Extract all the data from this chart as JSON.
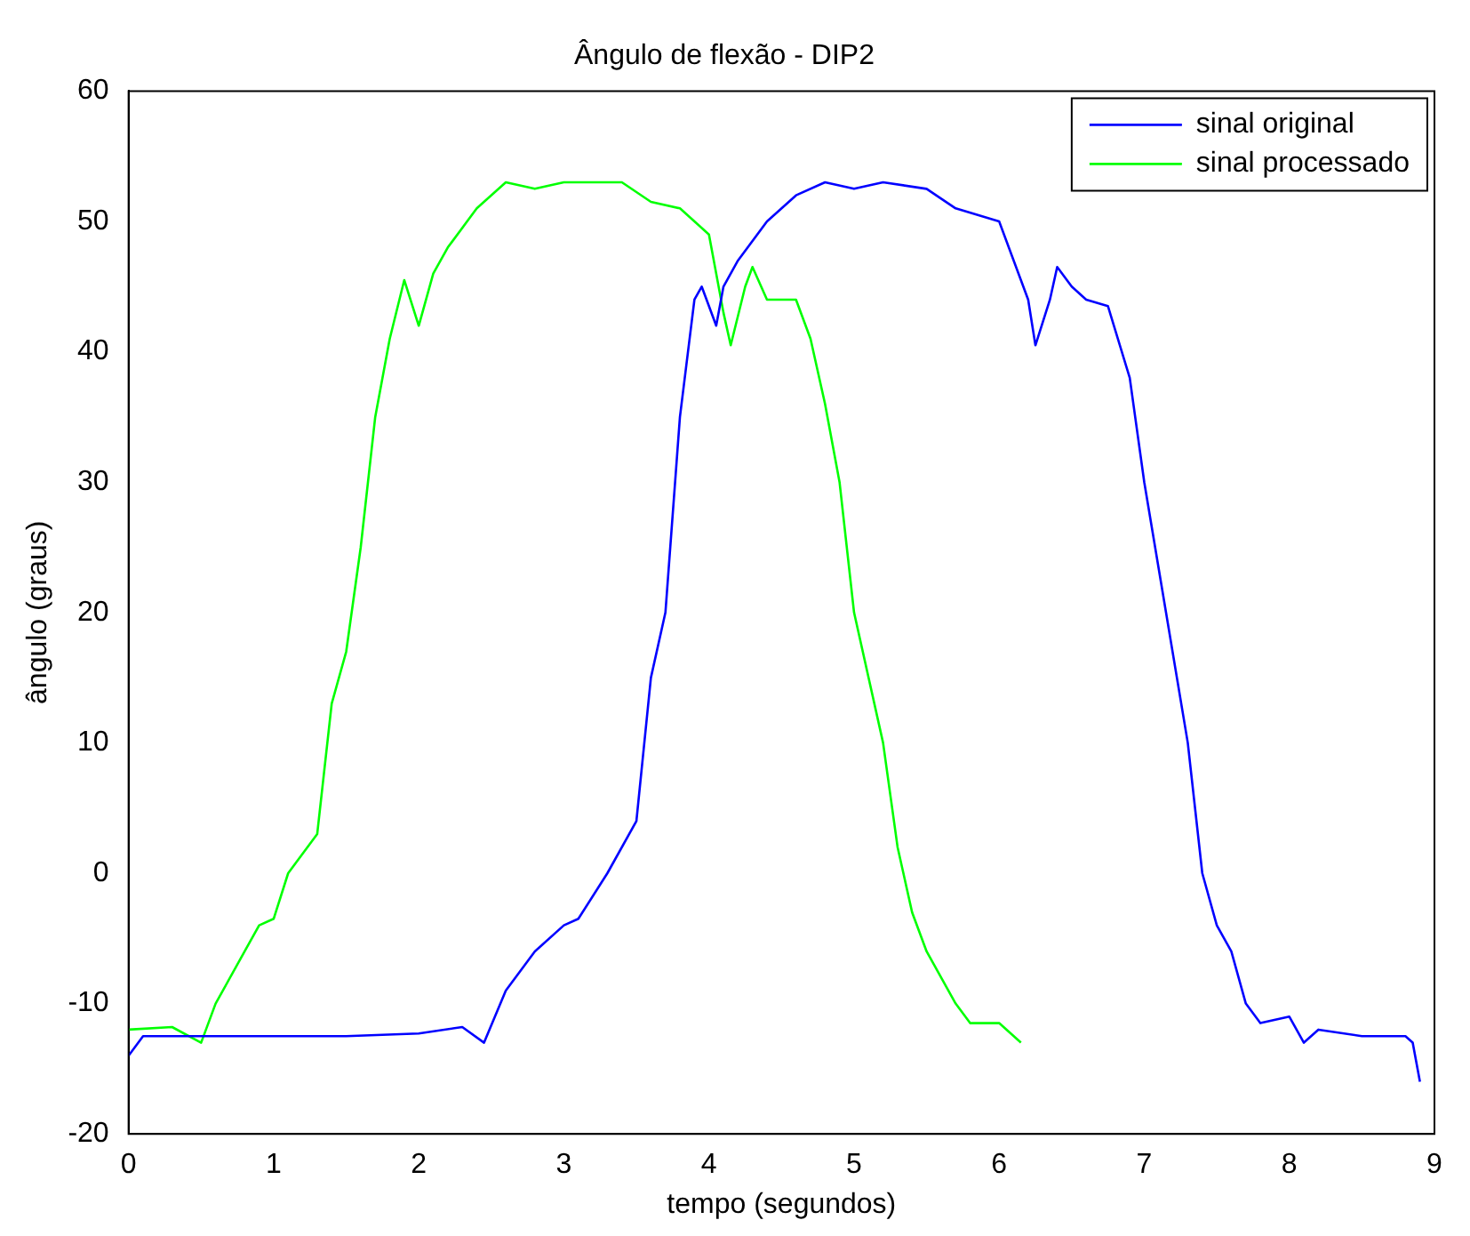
{
  "chart_data": {
    "type": "line",
    "title": "Ângulo de flexão - DIP2",
    "xlabel": "tempo (segundos)",
    "ylabel": "ângulo (graus)",
    "xlim": [
      0,
      9
    ],
    "xticks": [
      0,
      1,
      2,
      3,
      4,
      5,
      6,
      7,
      8,
      9
    ],
    "ylim": [
      -20,
      60
    ],
    "yticks": [
      -20,
      -10,
      0,
      10,
      20,
      30,
      40,
      50,
      60
    ],
    "grid": false,
    "legend": "top right",
    "marker": "none",
    "line_style": "solid",
    "series": [
      {
        "name": "sinal original",
        "color": "#0000ff",
        "x": [
          0,
          0.1,
          0.5,
          1,
          1.5,
          2,
          2.3,
          2.45,
          2.6,
          2.8,
          3.0,
          3.1,
          3.3,
          3.5,
          3.6,
          3.7,
          3.8,
          3.9,
          3.95,
          4.05,
          4.1,
          4.2,
          4.4,
          4.6,
          4.8,
          5.0,
          5.2,
          5.5,
          5.7,
          6.0,
          6.2,
          6.25,
          6.35,
          6.4,
          6.5,
          6.6,
          6.75,
          6.9,
          7.0,
          7.15,
          7.3,
          7.4,
          7.5,
          7.6,
          7.7,
          7.8,
          8.0,
          8.1,
          8.2,
          8.5,
          8.8,
          8.85,
          8.9
        ],
        "values": [
          -14,
          -12.5,
          -12.5,
          -12.5,
          -12.5,
          -12.3,
          -11.8,
          -13,
          -9,
          -6,
          -4,
          -3.5,
          0,
          4,
          15,
          20,
          35,
          44,
          45,
          42,
          45,
          47,
          50,
          52,
          53,
          52.5,
          53,
          52.5,
          51,
          50,
          44,
          40.5,
          44,
          46.5,
          45,
          44,
          43.5,
          38,
          30,
          20,
          10,
          0,
          -4,
          -6,
          -10,
          -11.5,
          -11,
          -13,
          -12,
          -12.5,
          -12.5,
          -13,
          -16
        ]
      },
      {
        "name": "sinal processado",
        "color": "#00ff00",
        "x": [
          0,
          0.3,
          0.5,
          0.6,
          0.8,
          0.9,
          1.0,
          1.1,
          1.3,
          1.4,
          1.5,
          1.6,
          1.7,
          1.8,
          1.9,
          2.0,
          2.1,
          2.2,
          2.4,
          2.6,
          2.8,
          3.0,
          3.4,
          3.6,
          3.8,
          4.0,
          4.1,
          4.15,
          4.25,
          4.3,
          4.4,
          4.6,
          4.7,
          4.8,
          4.9,
          5.0,
          5.2,
          5.3,
          5.4,
          5.5,
          5.7,
          5.8,
          6.0,
          6.15
        ],
        "values": [
          -12,
          -11.8,
          -13,
          -10,
          -6,
          -4,
          -3.5,
          0,
          3,
          13,
          17,
          25,
          35,
          41,
          45.5,
          42,
          46,
          48,
          51,
          53,
          52.5,
          53,
          53,
          51.5,
          51,
          49,
          43,
          40.5,
          45,
          46.5,
          44,
          44,
          41,
          36,
          30,
          20,
          10,
          2,
          -3,
          -6,
          -10,
          -11.5,
          -11.5,
          -13
        ]
      }
    ]
  }
}
